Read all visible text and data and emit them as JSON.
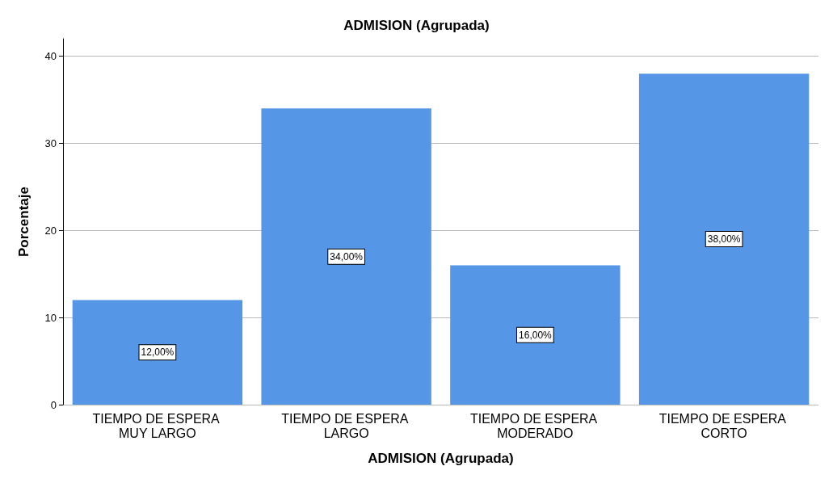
{
  "chart_data": {
    "type": "bar",
    "title": "ADMISION (Agrupada)",
    "xlabel": "ADMISION (Agrupada)",
    "ylabel": "Porcentaje",
    "categories": [
      "TIEMPO DE ESPERA MUY LARGO",
      "TIEMPO DE ESPERA LARGO",
      "TIEMPO DE ESPERA MODERADO",
      "TIEMPO DE ESPERA CORTO"
    ],
    "values": [
      12,
      34,
      16,
      38
    ],
    "value_labels": [
      "12,00%",
      "34,00%",
      "16,00%",
      "38,00%"
    ],
    "color": "#5596e6",
    "ylim": [
      0,
      42
    ],
    "yticks": [
      0,
      10,
      20,
      30,
      40
    ],
    "grid": "y"
  }
}
